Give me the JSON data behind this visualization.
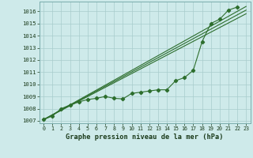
{
  "xlabel": "Graphe pression niveau de la mer (hPa)",
  "background_color": "#ceeaea",
  "grid_color": "#a8cccc",
  "line_color": "#2d6e2d",
  "xlim": [
    -0.5,
    23.5
  ],
  "ylim": [
    1006.8,
    1016.8
  ],
  "xticks": [
    0,
    1,
    2,
    3,
    4,
    5,
    6,
    7,
    8,
    9,
    10,
    11,
    12,
    13,
    14,
    15,
    16,
    17,
    18,
    19,
    20,
    21,
    22,
    23
  ],
  "yticks": [
    1007,
    1008,
    1009,
    1010,
    1011,
    1012,
    1013,
    1014,
    1015,
    1016
  ],
  "straight_lines": [
    [
      [
        0,
        23
      ],
      [
        1007.1,
        1016.4
      ]
    ],
    [
      [
        0,
        23
      ],
      [
        1007.1,
        1016.1
      ]
    ],
    [
      [
        0,
        23
      ],
      [
        1007.1,
        1015.8
      ]
    ]
  ],
  "marker_line": [
    1007.1,
    1007.4,
    1008.0,
    1008.3,
    1008.55,
    1008.75,
    1008.85,
    1009.0,
    1008.85,
    1008.8,
    1009.25,
    1009.35,
    1009.45,
    1009.55,
    1009.55,
    1010.3,
    1010.55,
    1011.15,
    1013.5,
    1015.0,
    1015.35,
    1016.1,
    1016.35
  ]
}
